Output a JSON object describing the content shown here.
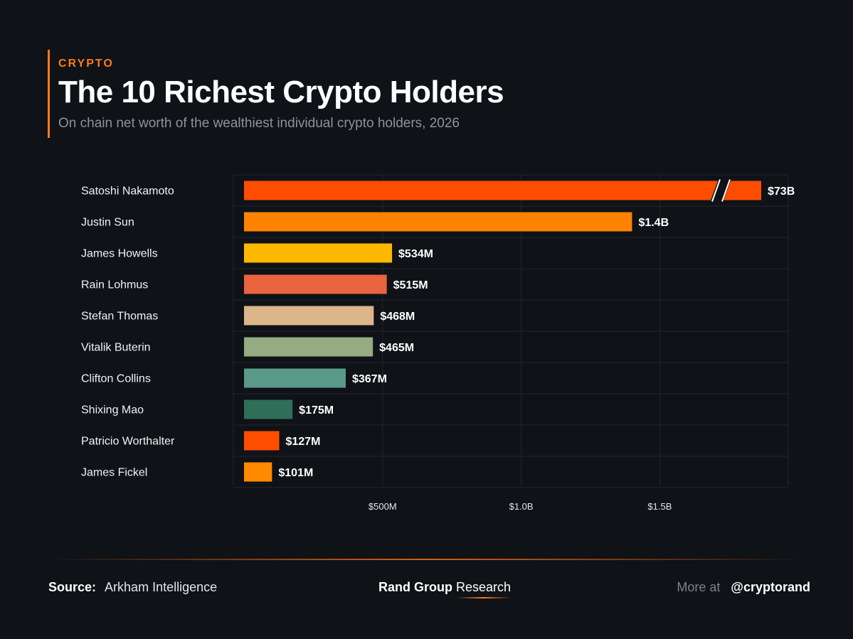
{
  "header": {
    "eyebrow": "CRYPTO",
    "title": "The 10 Richest Crypto Holders",
    "subtitle": "On chain net worth of the wealthiest individual crypto holders, 2026"
  },
  "chart_data": {
    "type": "bar",
    "orientation": "horizontal",
    "categories": [
      "Satoshi Nakamoto",
      "Justin Sun",
      "James Howells",
      "Rain Lohmus",
      "Stefan Thomas",
      "Vitalik Buterin",
      "Clifton Collins",
      "Shixing Mao",
      "Patricio Worthalter",
      "James Fickel"
    ],
    "values": [
      73000,
      1400,
      534,
      515,
      468,
      465,
      367,
      175,
      127,
      101
    ],
    "value_unit": "$M",
    "data_labels": [
      "$73B",
      "$1.4B",
      "$534M",
      "$515M",
      "$468M",
      "$465M",
      "$367M",
      "$175M",
      "$127M",
      "$101M"
    ],
    "colors": [
      "#ff4d00",
      "#ff8200",
      "#ffb800",
      "#e9643f",
      "#dcb68a",
      "#95ab82",
      "#5a9a86",
      "#2f6e58",
      "#ff4d00",
      "#ff8a00"
    ],
    "axis_break": {
      "series_index": 0,
      "note": "bar truncated with a break mark"
    },
    "xlim": [
      0,
      2000
    ],
    "xticks": [
      500,
      1000,
      1500
    ],
    "xtick_labels": [
      "$500M",
      "$1.0B",
      "$1.5B"
    ],
    "grid": true,
    "legend": false
  },
  "footer": {
    "source_label": "Source:",
    "source_value": "Arkham Intelligence",
    "brand_bold": "Rand Group",
    "brand_light": "Research",
    "more_label": "More at",
    "handle": "@cryptorand"
  },
  "colors": {
    "background": "#0f1217",
    "accent": "#ff7a1a",
    "grid": "#23272e"
  }
}
